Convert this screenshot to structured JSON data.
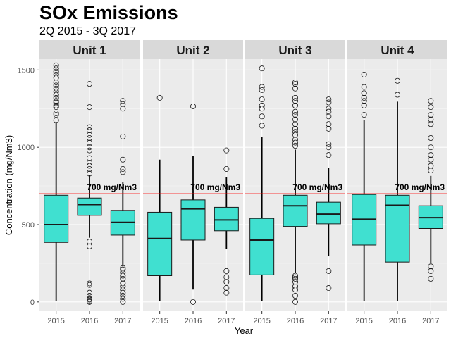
{
  "chart_data": {
    "type": "boxplot",
    "title": "SOx Emissions",
    "subtitle": "2Q 2015 - 3Q 2017",
    "xlabel": "Year",
    "ylabel": "Concentration (mg/Nm3)",
    "ylim": [
      -60,
      1570
    ],
    "yticks": [
      0,
      500,
      1000,
      1500
    ],
    "categories": [
      "2015",
      "2016",
      "2017"
    ],
    "reference_line": {
      "value": 700,
      "label": "700 mg/Nm3",
      "color": "#ff0000"
    },
    "colors": {
      "box_fill": "#40e0d0",
      "panel_bg": "#ebebeb",
      "strip_bg": "#d9d9d9",
      "grid_major": "#ffffff",
      "grid_minor": "#f5f5f5"
    },
    "panels": [
      {
        "name": "Unit 1",
        "boxes": [
          {
            "year": "2015",
            "min": 5,
            "q1": 385,
            "median": 500,
            "q3": 690,
            "max": 1165,
            "outliers": [
              1175,
              1210,
              1220,
              1260,
              1270,
              1290,
              1300,
              1320,
              1340,
              1360,
              1380,
              1400,
              1420,
              1450,
              1470,
              1490,
              1510,
              1530
            ]
          },
          {
            "year": "2016",
            "min": 415,
            "q1": 560,
            "median": 630,
            "q3": 672,
            "max": 820,
            "outliers": [
              0,
              5,
              15,
              20,
              40,
              60,
              110,
              120,
              360,
              390,
              830,
              860,
              880,
              900,
              930,
              980,
              1000,
              1030,
              1060,
              1080,
              1110,
              1130,
              1260,
              1410
            ]
          },
          {
            "year": "2017",
            "min": 230,
            "q1": 432,
            "median": 515,
            "q3": 592,
            "max": 775,
            "outliers": [
              0,
              20,
              40,
              60,
              80,
              100,
              120,
              150,
              170,
              190,
              210,
              220,
              840,
              860,
              920,
              1070,
              1250,
              1280,
              1300
            ]
          }
        ]
      },
      {
        "name": "Unit 2",
        "boxes": [
          {
            "year": "2015",
            "min": 5,
            "q1": 170,
            "median": 410,
            "q3": 580,
            "max": 920,
            "outliers": [
              1320
            ]
          },
          {
            "year": "2016",
            "min": 80,
            "q1": 400,
            "median": 602,
            "q3": 660,
            "max": 945,
            "outliers": [
              0,
              1265
            ]
          },
          {
            "year": "2017",
            "min": 345,
            "q1": 460,
            "median": 530,
            "q3": 612,
            "max": 805,
            "outliers": [
              60,
              90,
              130,
              160,
              200,
              860,
              980
            ]
          }
        ]
      },
      {
        "name": "Unit 3",
        "boxes": [
          {
            "year": "2015",
            "min": 5,
            "q1": 175,
            "median": 400,
            "q3": 540,
            "max": 1065,
            "outliers": [
              1140,
              1200,
              1250,
              1270,
              1310,
              1370,
              1390,
              1510
            ]
          },
          {
            "year": "2016",
            "min": 190,
            "q1": 488,
            "median": 622,
            "q3": 690,
            "max": 985,
            "outliers": [
              0,
              40,
              80,
              100,
              130,
              150,
              160,
              170,
              1010,
              1030,
              1050,
              1080,
              1100,
              1120,
              1150,
              1180,
              1210,
              1230,
              1270,
              1300,
              1320,
              1380,
              1410,
              1420
            ]
          },
          {
            "year": "2017",
            "min": 295,
            "q1": 505,
            "median": 568,
            "q3": 645,
            "max": 865,
            "outliers": [
              90,
              200,
              950,
              1000,
              1020,
              1120,
              1150,
              1200,
              1230,
              1250,
              1290,
              1310
            ]
          }
        ]
      },
      {
        "name": "Unit 4",
        "boxes": [
          {
            "year": "2015",
            "min": 5,
            "q1": 368,
            "median": 535,
            "q3": 695,
            "max": 1175,
            "outliers": [
              1210,
              1270,
              1300,
              1320,
              1350,
              1390,
              1470
            ]
          },
          {
            "year": "2016",
            "min": 5,
            "q1": 258,
            "median": 625,
            "q3": 690,
            "max": 1295,
            "outliers": [
              1340,
              1430
            ]
          },
          {
            "year": "2017",
            "min": 250,
            "q1": 475,
            "median": 545,
            "q3": 622,
            "max": 815,
            "outliers": [
              150,
              200,
              230,
              850,
              880,
              920,
              950,
              1000,
              1060,
              1150,
              1180,
              1210,
              1260,
              1300
            ]
          }
        ]
      }
    ]
  }
}
